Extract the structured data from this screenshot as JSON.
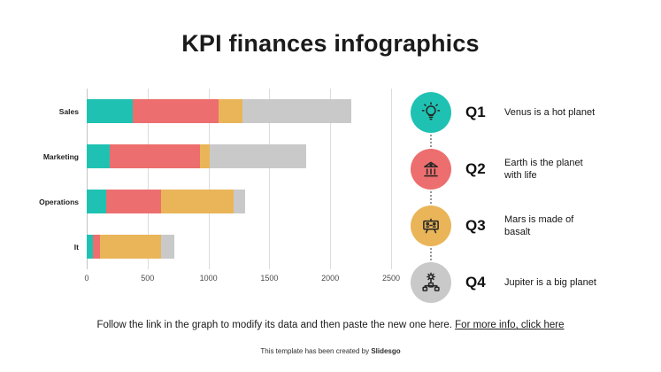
{
  "title": "KPI finances infographics",
  "chart_data": {
    "type": "bar",
    "orientation": "horizontal",
    "stacked": true,
    "categories": [
      "Sales",
      "Marketing",
      "Operations",
      "It"
    ],
    "series": [
      {
        "name": "teal",
        "color": "#1fc2b2",
        "values": [
          380,
          190,
          160,
          50
        ]
      },
      {
        "name": "red",
        "color": "#ed6e6e",
        "values": [
          700,
          740,
          450,
          60
        ]
      },
      {
        "name": "yellow",
        "color": "#e9b558",
        "values": [
          200,
          80,
          600,
          500
        ]
      },
      {
        "name": "gray",
        "color": "#c9c9c9",
        "values": [
          890,
          790,
          90,
          110
        ]
      }
    ],
    "xlim": [
      0,
      2500
    ],
    "xticks": [
      0,
      500,
      1000,
      1500,
      2000,
      2500
    ],
    "grid": true,
    "legend_position": "none",
    "title": "KPI finances infographics",
    "xlabel": "",
    "ylabel": ""
  },
  "qa_items": [
    {
      "id": "Q1",
      "icon": "lightbulb-icon",
      "color": "#1fc2b2",
      "text": "Venus is a hot planet"
    },
    {
      "id": "Q2",
      "icon": "bank-icon",
      "color": "#ed6e6e",
      "text": "Earth is the planet with life"
    },
    {
      "id": "Q3",
      "icon": "presentation-icon",
      "color": "#e9b558",
      "text": "Mars is made of basalt"
    },
    {
      "id": "Q4",
      "icon": "flowchart-icon",
      "color": "#c9c9c9",
      "text": "Jupiter is a big planet"
    }
  ],
  "footer": {
    "text": "Follow the link in the graph to modify its data and then paste the new one here. ",
    "link": "For more info, click here"
  },
  "credit": {
    "text": "This template has been created by ",
    "brand": "Slidesgo"
  }
}
